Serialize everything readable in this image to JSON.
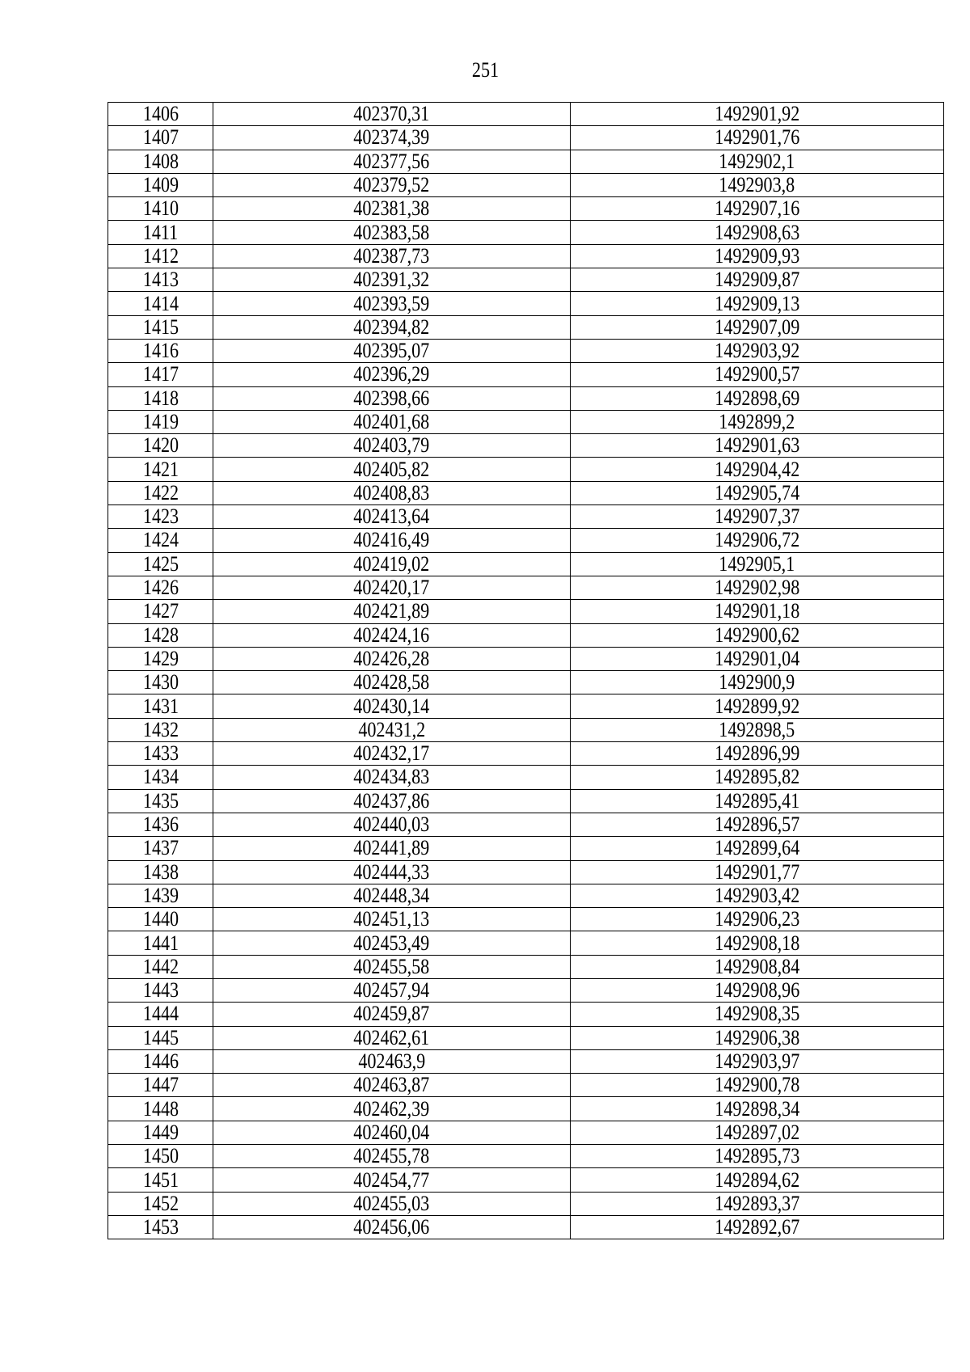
{
  "page_number": "251",
  "rows": [
    [
      "1406",
      "402370,31",
      "1492901,92"
    ],
    [
      "1407",
      "402374,39",
      "1492901,76"
    ],
    [
      "1408",
      "402377,56",
      "1492902,1"
    ],
    [
      "1409",
      "402379,52",
      "1492903,8"
    ],
    [
      "1410",
      "402381,38",
      "1492907,16"
    ],
    [
      "1411",
      "402383,58",
      "1492908,63"
    ],
    [
      "1412",
      "402387,73",
      "1492909,93"
    ],
    [
      "1413",
      "402391,32",
      "1492909,87"
    ],
    [
      "1414",
      "402393,59",
      "1492909,13"
    ],
    [
      "1415",
      "402394,82",
      "1492907,09"
    ],
    [
      "1416",
      "402395,07",
      "1492903,92"
    ],
    [
      "1417",
      "402396,29",
      "1492900,57"
    ],
    [
      "1418",
      "402398,66",
      "1492898,69"
    ],
    [
      "1419",
      "402401,68",
      "1492899,2"
    ],
    [
      "1420",
      "402403,79",
      "1492901,63"
    ],
    [
      "1421",
      "402405,82",
      "1492904,42"
    ],
    [
      "1422",
      "402408,83",
      "1492905,74"
    ],
    [
      "1423",
      "402413,64",
      "1492907,37"
    ],
    [
      "1424",
      "402416,49",
      "1492906,72"
    ],
    [
      "1425",
      "402419,02",
      "1492905,1"
    ],
    [
      "1426",
      "402420,17",
      "1492902,98"
    ],
    [
      "1427",
      "402421,89",
      "1492901,18"
    ],
    [
      "1428",
      "402424,16",
      "1492900,62"
    ],
    [
      "1429",
      "402426,28",
      "1492901,04"
    ],
    [
      "1430",
      "402428,58",
      "1492900,9"
    ],
    [
      "1431",
      "402430,14",
      "1492899,92"
    ],
    [
      "1432",
      "402431,2",
      "1492898,5"
    ],
    [
      "1433",
      "402432,17",
      "1492896,99"
    ],
    [
      "1434",
      "402434,83",
      "1492895,82"
    ],
    [
      "1435",
      "402437,86",
      "1492895,41"
    ],
    [
      "1436",
      "402440,03",
      "1492896,57"
    ],
    [
      "1437",
      "402441,89",
      "1492899,64"
    ],
    [
      "1438",
      "402444,33",
      "1492901,77"
    ],
    [
      "1439",
      "402448,34",
      "1492903,42"
    ],
    [
      "1440",
      "402451,13",
      "1492906,23"
    ],
    [
      "1441",
      "402453,49",
      "1492908,18"
    ],
    [
      "1442",
      "402455,58",
      "1492908,84"
    ],
    [
      "1443",
      "402457,94",
      "1492908,96"
    ],
    [
      "1444",
      "402459,87",
      "1492908,35"
    ],
    [
      "1445",
      "402462,61",
      "1492906,38"
    ],
    [
      "1446",
      "402463,9",
      "1492903,97"
    ],
    [
      "1447",
      "402463,87",
      "1492900,78"
    ],
    [
      "1448",
      "402462,39",
      "1492898,34"
    ],
    [
      "1449",
      "402460,04",
      "1492897,02"
    ],
    [
      "1450",
      "402455,78",
      "1492895,73"
    ],
    [
      "1451",
      "402454,77",
      "1492894,62"
    ],
    [
      "1452",
      "402455,03",
      "1492893,37"
    ],
    [
      "1453",
      "402456,06",
      "1492892,67"
    ]
  ]
}
